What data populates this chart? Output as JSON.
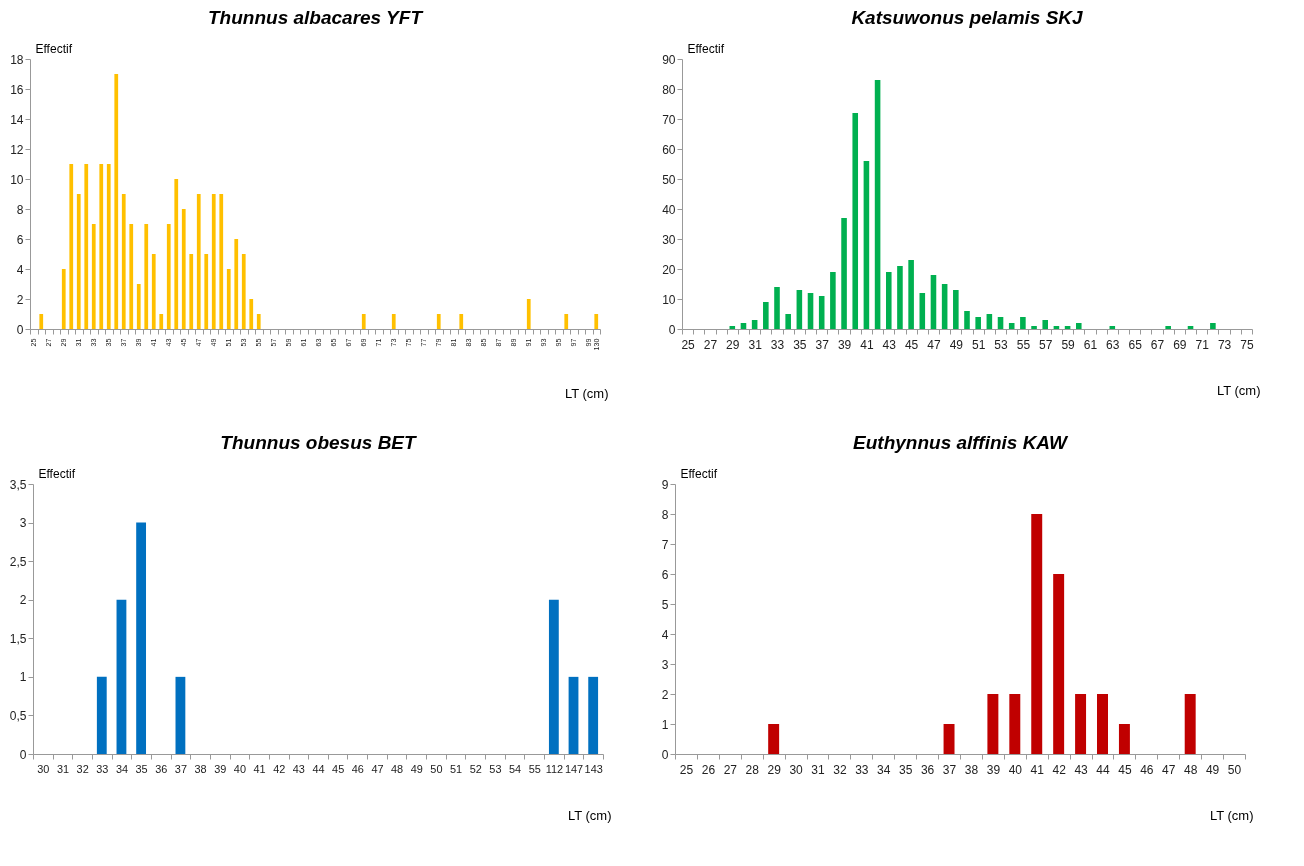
{
  "chart_data": [
    {
      "type": "bar",
      "title": "Thunnus albacares YFT",
      "xlabel": "LT (cm)",
      "ylabel": "Effectif",
      "color": "#ffc000",
      "ylim": [
        0,
        18
      ],
      "yticks": [
        0,
        2,
        4,
        6,
        8,
        10,
        12,
        14,
        16,
        18
      ],
      "categories": [
        "25",
        null,
        "27",
        null,
        "29",
        null,
        "31",
        null,
        "33",
        null,
        "35",
        null,
        "37",
        null,
        "39",
        null,
        "41",
        null,
        "43",
        null,
        "45",
        null,
        "47",
        null,
        "49",
        null,
        "51",
        null,
        "53",
        null,
        "55",
        null,
        "57",
        null,
        "59",
        null,
        "61",
        null,
        "63",
        null,
        "65",
        null,
        "67",
        null,
        "69",
        null,
        "71",
        null,
        "73",
        null,
        "75",
        null,
        "77",
        null,
        "79",
        null,
        "81",
        null,
        "83",
        null,
        "85",
        null,
        "87",
        null,
        "89",
        null,
        "91",
        null,
        "93",
        null,
        "95",
        null,
        "97",
        null,
        "99",
        "130"
      ],
      "values": [
        0,
        1,
        0,
        0,
        4,
        11,
        9,
        11,
        7,
        11,
        11,
        17,
        9,
        7,
        3,
        7,
        5,
        1,
        7,
        10,
        8,
        5,
        9,
        5,
        9,
        9,
        4,
        6,
        5,
        2,
        1,
        0,
        0,
        0,
        0,
        0,
        0,
        0,
        0,
        0,
        0,
        0,
        0,
        0,
        1,
        0,
        0,
        0,
        1,
        0,
        0,
        0,
        0,
        0,
        1,
        0,
        0,
        1,
        0,
        0,
        0,
        0,
        0,
        0,
        0,
        0,
        2,
        0,
        0,
        0,
        0,
        1,
        0,
        0,
        0,
        1
      ]
    },
    {
      "type": "bar",
      "title": "Katsuwonus pelamis SKJ",
      "xlabel": "LT (cm)",
      "ylabel": "Effectif",
      "color": "#00b050",
      "ylim": [
        0,
        90
      ],
      "yticks": [
        0,
        10,
        20,
        30,
        40,
        50,
        60,
        70,
        80,
        90
      ],
      "categories": [
        "25",
        null,
        "27",
        null,
        "29",
        null,
        "31",
        null,
        "33",
        null,
        "35",
        null,
        "37",
        null,
        "39",
        null,
        "41",
        null,
        "43",
        null,
        "45",
        null,
        "47",
        null,
        "49",
        null,
        "51",
        null,
        "53",
        null,
        "55",
        null,
        "57",
        null,
        "59",
        null,
        "61",
        null,
        "63",
        null,
        "65",
        null,
        "67",
        null,
        "69",
        null,
        "71",
        null,
        "73",
        null,
        "75"
      ],
      "values": [
        0,
        0,
        0,
        0,
        1,
        2,
        3,
        9,
        14,
        5,
        13,
        12,
        11,
        19,
        37,
        72,
        56,
        83,
        19,
        21,
        23,
        12,
        18,
        15,
        13,
        6,
        4,
        5,
        4,
        2,
        4,
        1,
        3,
        1,
        1,
        2,
        0,
        0,
        1,
        0,
        0,
        0,
        0,
        1,
        0,
        1,
        0,
        2,
        0,
        0,
        0
      ]
    },
    {
      "type": "bar",
      "title": "Thunnus obesus BET",
      "xlabel": "LT (cm)",
      "ylabel": "Effectif",
      "color": "#0070c0",
      "ylim": [
        0,
        3.5
      ],
      "yticks": [
        0,
        {
          "value": 0.5,
          "label": "0,5"
        },
        1,
        {
          "value": 1.5,
          "label": "1,5"
        },
        2,
        {
          "value": 2.5,
          "label": "2,5"
        },
        3,
        {
          "value": 3.5,
          "label": "3,5"
        }
      ],
      "categories": [
        "30",
        "31",
        "32",
        "33",
        "34",
        "35",
        "36",
        "37",
        "38",
        "39",
        "40",
        "41",
        "42",
        "43",
        "44",
        "45",
        "46",
        "47",
        "48",
        "49",
        "50",
        "51",
        "52",
        "53",
        "54",
        "55",
        "112",
        "147",
        "143"
      ],
      "values": [
        0,
        0,
        0,
        1,
        2,
        3,
        0,
        1,
        0,
        0,
        0,
        0,
        0,
        0,
        0,
        0,
        0,
        0,
        0,
        0,
        0,
        0,
        0,
        0,
        0,
        0,
        2,
        1,
        1
      ]
    },
    {
      "type": "bar",
      "title": "Euthynnus alffinis KAW",
      "xlabel": "LT (cm)",
      "ylabel": "Effectif",
      "color": "#c00000",
      "ylim": [
        0,
        9
      ],
      "yticks": [
        0,
        1,
        2,
        3,
        4,
        5,
        6,
        7,
        8,
        9
      ],
      "categories": [
        "25",
        "26",
        "27",
        "28",
        "29",
        "30",
        "31",
        "32",
        "33",
        "34",
        "35",
        "36",
        "37",
        "38",
        "39",
        "40",
        "41",
        "42",
        "43",
        "44",
        "45",
        "46",
        "47",
        "48",
        "49",
        "50"
      ],
      "values": [
        0,
        0,
        0,
        0,
        1,
        0,
        0,
        0,
        0,
        0,
        0,
        0,
        1,
        0,
        2,
        2,
        8,
        6,
        2,
        2,
        1,
        0,
        0,
        2,
        0,
        0
      ]
    }
  ]
}
